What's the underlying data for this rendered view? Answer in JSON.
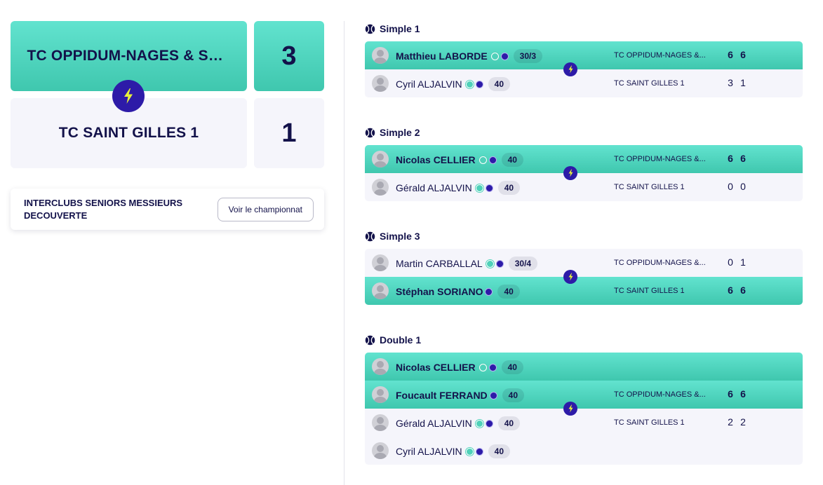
{
  "summary": {
    "team_a": {
      "name": "TC OPPIDUM-NAGES & SOL...",
      "score": "3"
    },
    "team_b": {
      "name": "TC SAINT GILLES 1",
      "score": "1"
    },
    "championship": {
      "title": "INTERCLUBS SENIORS MESSIEURS DECOUVERTE",
      "button": "Voir le championnat"
    }
  },
  "matches": [
    {
      "title": "Simple 1",
      "rows": [
        {
          "name": "Matthieu LABORDE",
          "rank": "30/3",
          "club": "TC OPPIDUM-NAGES &...",
          "s1": "6",
          "s2": "6"
        },
        {
          "name": "Cyril ALJALVIN",
          "rank": "40",
          "club": "TC SAINT GILLES 1",
          "s1": "3",
          "s2": "1"
        }
      ]
    },
    {
      "title": "Simple 2",
      "rows": [
        {
          "name": "Nicolas CELLIER",
          "rank": "40",
          "club": "TC OPPIDUM-NAGES &...",
          "s1": "6",
          "s2": "6"
        },
        {
          "name": "Gérald ALJALVIN",
          "rank": "40",
          "club": "TC SAINT GILLES 1",
          "s1": "0",
          "s2": "0"
        }
      ]
    },
    {
      "title": "Simple 3",
      "rows": [
        {
          "name": "Martin CARBALLAL",
          "rank": "30/4",
          "club": "TC OPPIDUM-NAGES &...",
          "s1": "0",
          "s2": "1"
        },
        {
          "name": "Stéphan SORIANO",
          "rank": "40",
          "club": "TC SAINT GILLES 1",
          "s1": "6",
          "s2": "6"
        }
      ]
    },
    {
      "title": "Double 1",
      "rows": [
        {
          "name": "Nicolas CELLIER",
          "rank": "40"
        },
        {
          "name": "Foucault FERRAND",
          "rank": "40",
          "club": "TC OPPIDUM-NAGES &...",
          "s1": "6",
          "s2": "6"
        },
        {
          "name": "Gérald ALJALVIN",
          "rank": "40",
          "club": "TC SAINT GILLES 1",
          "s1": "2",
          "s2": "2"
        },
        {
          "name": "Cyril ALJALVIN",
          "rank": "40"
        }
      ]
    }
  ],
  "icons": {
    "bolt": "lightning-bolt-icon",
    "ball": "tennis-ball-icon",
    "avatar": "user-avatar-icon"
  },
  "colors": {
    "accent": "#4fd1b9",
    "brand": "#2d1ba8",
    "bolt": "#e8f23a",
    "text": "#13124a",
    "pale": "#f5f5fb"
  }
}
